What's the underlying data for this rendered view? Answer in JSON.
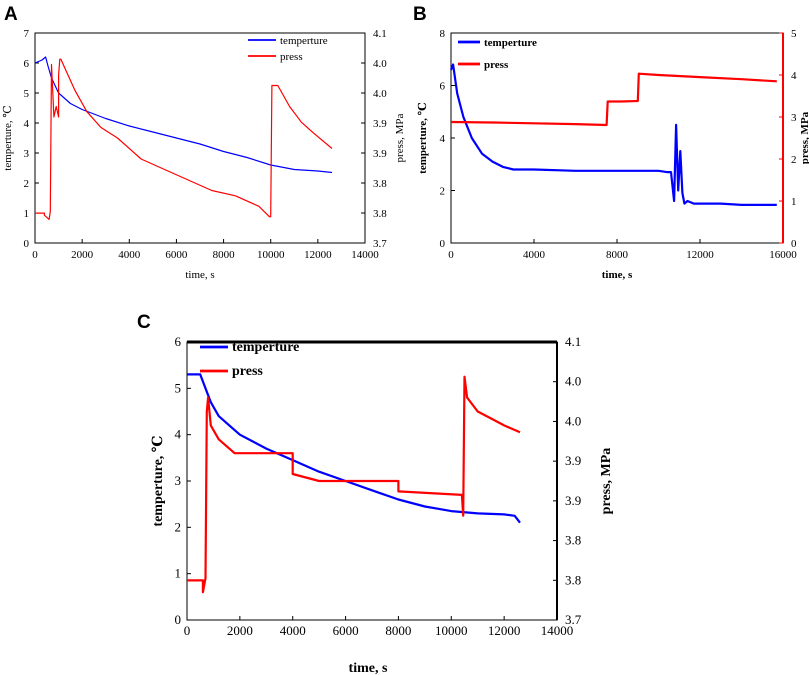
{
  "chart_data": [
    {
      "panel": "A",
      "type": "line",
      "xlabel": "time, s",
      "ylabel": "temperture, ℃",
      "y2label": "press, MPa",
      "xlim": [
        0,
        14000
      ],
      "ylim": [
        0,
        7
      ],
      "y2lim": [
        3.7,
        4.1
      ],
      "x_ticks": [
        "0",
        "2000",
        "4000",
        "6000",
        "8000",
        "10000",
        "12000",
        "14000"
      ],
      "y_ticks": [
        "0",
        "1",
        "2",
        "3",
        "4",
        "5",
        "6",
        "7"
      ],
      "y2_ticks": [
        "3.7",
        "3.8",
        "3.8",
        "3.9",
        "3.9",
        "4.0",
        "4.0",
        "4.1"
      ],
      "legend": [
        "temperture",
        "press"
      ],
      "series": [
        {
          "name": "temperture",
          "color": "#0000ff",
          "axis": "left",
          "x": [
            0,
            150,
            300,
            450,
            550,
            700,
            1000,
            1500,
            2000,
            3000,
            4000,
            5000,
            6000,
            7000,
            8000,
            9000,
            10000,
            11000,
            12000,
            12600
          ],
          "y": [
            6.0,
            6.05,
            6.1,
            6.2,
            5.9,
            5.5,
            5.0,
            4.65,
            4.45,
            4.15,
            3.9,
            3.7,
            3.5,
            3.3,
            3.05,
            2.85,
            2.6,
            2.45,
            2.4,
            2.35
          ]
        },
        {
          "name": "press",
          "color": "#ff0000",
          "axis": "right",
          "x": [
            0,
            400,
            400,
            600,
            650,
            700,
            800,
            900,
            1000,
            1000,
            1050,
            1100,
            1300,
            1700,
            2200,
            2800,
            3500,
            4500,
            5500,
            6500,
            7500,
            8500,
            9500,
            9950,
            10000,
            10050,
            10300,
            10800,
            11300,
            11800,
            12600
          ],
          "y": [
            3.757,
            3.757,
            3.753,
            3.745,
            3.76,
            4.04,
            3.94,
            3.96,
            3.94,
            4.02,
            4.05,
            4.05,
            4.03,
            3.99,
            3.95,
            3.92,
            3.9,
            3.86,
            3.84,
            3.82,
            3.8,
            3.79,
            3.77,
            3.75,
            3.75,
            4.0,
            4.0,
            3.96,
            3.93,
            3.91,
            3.88
          ]
        }
      ]
    },
    {
      "panel": "B",
      "type": "line",
      "xlabel": "time, s",
      "ylabel": "temperture, ℃",
      "y2label": "press, MPa",
      "xlim": [
        0,
        16000
      ],
      "ylim": [
        0,
        8
      ],
      "y2lim": [
        0,
        5
      ],
      "x_ticks": [
        "0",
        "4000",
        "8000",
        "12000",
        "16000"
      ],
      "y_ticks": [
        "0",
        "2",
        "4",
        "6",
        "8"
      ],
      "y2_ticks": [
        "0",
        "1",
        "2",
        "3",
        "4",
        "5"
      ],
      "legend": [
        "temperture",
        "press"
      ],
      "series": [
        {
          "name": "temperture",
          "color": "#0000ff",
          "axis": "left",
          "x": [
            0,
            100,
            300,
            600,
            1000,
            1500,
            2000,
            2500,
            3000,
            4000,
            6000,
            8000,
            10000,
            10400,
            10600,
            10750,
            10850,
            10950,
            11050,
            11150,
            11250,
            11400,
            11700,
            12000,
            13000,
            14000,
            15000,
            15700
          ],
          "y": [
            6.6,
            6.8,
            5.7,
            4.8,
            4.0,
            3.4,
            3.1,
            2.9,
            2.8,
            2.8,
            2.75,
            2.75,
            2.75,
            2.7,
            2.7,
            1.6,
            4.5,
            2.0,
            3.5,
            1.9,
            1.5,
            1.6,
            1.5,
            1.5,
            1.5,
            1.45,
            1.45,
            1.45
          ]
        },
        {
          "name": "press",
          "color": "#ff0000",
          "axis": "right",
          "x": [
            0,
            2000,
            4000,
            6000,
            7500,
            7550,
            8200,
            9000,
            9050,
            10000,
            12000,
            14000,
            15700
          ],
          "y": [
            2.88,
            2.87,
            2.85,
            2.83,
            2.81,
            3.37,
            3.37,
            3.38,
            4.03,
            4.0,
            3.95,
            3.9,
            3.85
          ]
        }
      ]
    },
    {
      "panel": "C",
      "type": "line",
      "xlabel": "time, s",
      "ylabel": "temperture, ℃",
      "y2label": "press, MPa",
      "xlim": [
        0,
        14000
      ],
      "ylim": [
        0,
        6
      ],
      "y2lim": [
        3.7,
        4.1
      ],
      "x_ticks": [
        "0",
        "2000",
        "4000",
        "6000",
        "8000",
        "10000",
        "12000",
        "14000"
      ],
      "y_ticks": [
        "0",
        "1",
        "2",
        "3",
        "4",
        "5",
        "6"
      ],
      "y2_ticks": [
        "3.7",
        "3.8",
        "3.8",
        "3.9",
        "3.9",
        "4.0",
        "4.0",
        "4.1"
      ],
      "legend": [
        "temperture",
        "press"
      ],
      "series": [
        {
          "name": "temperture",
          "color": "#0000ff",
          "axis": "left",
          "x": [
            0,
            300,
            500,
            700,
            900,
            1200,
            1600,
            2000,
            2500,
            3000,
            4000,
            5000,
            6000,
            7000,
            8000,
            9000,
            10000,
            11000,
            12000,
            12400,
            12600
          ],
          "y": [
            5.3,
            5.3,
            5.3,
            5.0,
            4.7,
            4.4,
            4.2,
            4.0,
            3.85,
            3.7,
            3.45,
            3.2,
            3.0,
            2.8,
            2.6,
            2.45,
            2.35,
            2.3,
            2.28,
            2.25,
            2.1
          ]
        },
        {
          "name": "press",
          "color": "#ff0000",
          "axis": "right",
          "x": [
            0,
            600,
            600,
            700,
            750,
            800,
            900,
            1200,
            1800,
            2500,
            4000,
            4000,
            5000,
            8000,
            8000,
            10400,
            10450,
            10500,
            10600,
            11000,
            11500,
            12000,
            12600
          ],
          "y": [
            3.757,
            3.757,
            3.74,
            3.76,
            4.0,
            4.02,
            3.98,
            3.96,
            3.94,
            3.94,
            3.94,
            3.91,
            3.9,
            3.9,
            3.885,
            3.88,
            3.85,
            4.05,
            4.02,
            4.0,
            3.99,
            3.98,
            3.97
          ]
        }
      ]
    }
  ],
  "panels": [
    {
      "letter": "A"
    },
    {
      "letter": "B"
    },
    {
      "letter": "C"
    }
  ]
}
